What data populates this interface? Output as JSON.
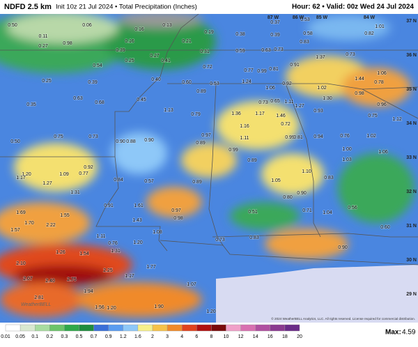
{
  "header": {
    "product": "NDFD 2.5 km",
    "title": "Init 10z 21 Jul 2024 • Total Precipitation (Inches)",
    "valid": "Hour: 62 • Valid: 00z Wed 24 Jul 2024"
  },
  "grid_labels": {
    "longitudes": [
      "87 W",
      "86 W",
      "85 W",
      "84 W"
    ],
    "latitudes": [
      "37 N",
      "36 N",
      "35 N",
      "34 N",
      "33 N",
      "32 N",
      "31 N",
      "30 N",
      "29 N"
    ]
  },
  "point_labels": [
    "0.50",
    "0.06",
    "0.11",
    "0.16",
    "0.13",
    "0.19",
    "0.38",
    "0.37",
    "0.39",
    "0.53",
    "1.01",
    "0.82",
    "0.27",
    "0.98",
    "0.16",
    "0.21",
    "0.39",
    "0.27",
    "0.31",
    "0.59",
    "0.63",
    "0.73",
    "0.83",
    "0.58",
    "1.37",
    "0.73",
    "0.25",
    "0.54",
    "0.41",
    "0.72",
    "0.77",
    "0.99",
    "0.81",
    "0.91",
    "1.06",
    "0.25",
    "0.39",
    "0.40",
    "0.60",
    "0.53",
    "1.24",
    "0.92",
    "1.44",
    "0.78",
    "0.35",
    "0.63",
    "0.68",
    "0.45",
    "0.89",
    "1.06",
    "1.02",
    "0.98",
    "0.73",
    "0.65",
    "1.11",
    "1.30",
    "0.96",
    "1.13",
    "0.79",
    "1.36",
    "1.17",
    "1.46",
    "1.27",
    "0.93",
    "0.75",
    "1.12",
    "1.16",
    "0.72",
    "0.97",
    "0.89",
    "1.11",
    "0.99",
    "0.81",
    "0.94",
    "0.76",
    "1.02",
    "0.75",
    "0.73",
    "0.90",
    "0.88",
    "0.90",
    "0.50",
    "0.99",
    "1.00",
    "1.06",
    "0.89",
    "0.92",
    "1.09",
    "0.77",
    "1.20",
    "1.17",
    "0.84",
    "0.57",
    "0.89",
    "1.05",
    "1.10",
    "1.03",
    "0.83",
    "1.27",
    "1.31",
    "0.90",
    "0.80",
    "0.91",
    "1.61",
    "0.97",
    "1.69",
    "1.55",
    "0.98",
    "1.43",
    "0.51",
    "0.71",
    "1.04",
    "0.56",
    "1.70",
    "2.22",
    "1.57",
    "1.08",
    "1.11",
    "0.76",
    "1.20",
    "0.83",
    "0.60",
    "0.90",
    "1.26",
    "1.54",
    "1.31",
    "0.73",
    "2.10",
    "1.77",
    "2.25",
    "2.07",
    "2.40",
    "2.75",
    "1.17",
    "1.07",
    "1.94",
    "2.81",
    "1.56",
    "1.20",
    "1.20",
    "1.90"
  ],
  "legend": {
    "labels": [
      "0.01",
      "0.05",
      "0.1",
      "0.2",
      "0.3",
      "0.5",
      "0.7",
      "0.9",
      "1.2",
      "1.6",
      "2",
      "3",
      "4",
      "6",
      "8",
      "10",
      "12",
      "14",
      "16",
      "18",
      "20"
    ],
    "colors": [
      "#ffffff",
      "#d9e8d0",
      "#a8dca0",
      "#6cc46a",
      "#2fa84a",
      "#1e8c3e",
      "#3a6fd8",
      "#5a9cf0",
      "#8ec8f8",
      "#f6f08a",
      "#f6c24a",
      "#f08a2a",
      "#e0421e",
      "#b01010",
      "#7a0a0a",
      "#f0a0c8",
      "#d870b0",
      "#b050a0",
      "#8a3a90",
      "#6a2a88",
      "#c040e0"
    ],
    "max_label": "Max:",
    "max_value": "4.59"
  },
  "logo": "WeatherBELL",
  "copyright": "© 2024 WeatherBELL Analytics, LLC. All rights reserved. License required for commercial distribution."
}
